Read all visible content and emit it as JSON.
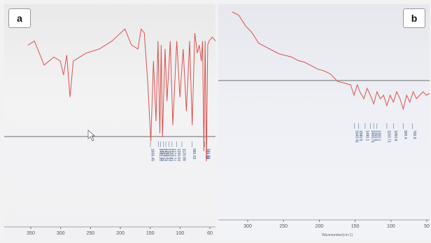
{
  "chart_data": [
    {
      "type": "line",
      "panel_label": "a",
      "xlabel": "",
      "ylabel": "",
      "xlim": [
        3500,
        600
      ],
      "x_ticks": [
        "350",
        "300",
        "250",
        "200",
        "150",
        "100",
        "60"
      ],
      "series_color": "#d9534f",
      "grid": false,
      "series": [
        {
          "name": "",
          "x": [
            3500,
            3400,
            3250,
            3100,
            3000,
            2950,
            2900,
            2850,
            2800,
            2600,
            2400,
            2200,
            2000,
            1900,
            1800,
            1750,
            1700,
            1650,
            1600,
            1560,
            1520,
            1490,
            1460,
            1440,
            1420,
            1380,
            1350,
            1300,
            1260,
            1200,
            1150,
            1100,
            1050,
            1000,
            960,
            920,
            880,
            850,
            820,
            800,
            780,
            760,
            741,
            720,
            700,
            650,
            600
          ],
          "y": [
            88,
            90,
            78,
            82,
            80,
            73,
            83,
            62,
            80,
            84,
            86,
            90,
            96,
            88,
            86,
            96,
            94,
            70,
            40,
            80,
            50,
            90,
            44,
            88,
            42,
            86,
            60,
            90,
            48,
            90,
            62,
            86,
            55,
            90,
            48,
            94,
            84,
            88,
            80,
            90,
            35,
            90,
            30,
            88,
            90,
            92,
            90
          ]
        }
      ],
      "peak_labels": [
        {
          "x": 1606,
          "text": "1606.45"
        },
        {
          "x": 1481,
          "text": "1481.20"
        },
        {
          "x": 1452,
          "text": "1452.15"
        },
        {
          "x": 1408,
          "text": "1408.74"
        },
        {
          "x": 1368,
          "text": "1368.37"
        },
        {
          "x": 1320,
          "text": "1320.83"
        },
        {
          "x": 1272,
          "text": "1272.77"
        },
        {
          "x": 1200,
          "text": "1200.04"
        },
        {
          "x": 1120,
          "text": "1120.99"
        },
        {
          "x": 960,
          "text": "960.03"
        },
        {
          "x": 767,
          "text": "767.98"
        },
        {
          "x": 741,
          "text": "741.89"
        }
      ]
    },
    {
      "type": "line",
      "panel_label": "b",
      "xlabel": "Wavenumber(cm-1)",
      "ylabel": "",
      "xlim": [
        3500,
        500
      ],
      "x_ticks": [
        "300",
        "250",
        "200",
        "150",
        "100",
        "50"
      ],
      "series_color": "#d9534f",
      "grid": false,
      "series": [
        {
          "name": "",
          "x": [
            3500,
            3400,
            3300,
            3200,
            3100,
            3000,
            2900,
            2800,
            2700,
            2600,
            2500,
            2400,
            2300,
            2200,
            2100,
            2000,
            1900,
            1800,
            1700,
            1650,
            1600,
            1560,
            1500,
            1450,
            1400,
            1350,
            1300,
            1250,
            1200,
            1150,
            1100,
            1050,
            1000,
            950,
            900,
            850,
            800,
            750,
            700,
            650,
            600,
            550,
            500
          ],
          "y": [
            98,
            96,
            90,
            86,
            80,
            78,
            76,
            74,
            73,
            72,
            70,
            69,
            67,
            65,
            64,
            62,
            58,
            57,
            56,
            50,
            56,
            52,
            48,
            54,
            50,
            45,
            52,
            48,
            50,
            44,
            50,
            46,
            52,
            48,
            42,
            50,
            46,
            52,
            48,
            50,
            52,
            50,
            51
          ]
        }
      ],
      "peak_labels": [
        {
          "x": 1640,
          "text": "1640.41"
        },
        {
          "x": 1580,
          "text": "1580.5"
        },
        {
          "x": 1480,
          "text": "1480.1"
        },
        {
          "x": 1400,
          "text": "1400.71"
        },
        {
          "x": 1350,
          "text": "1350.6"
        },
        {
          "x": 1300,
          "text": "1300.1"
        },
        {
          "x": 1150,
          "text": "1150.71"
        },
        {
          "x": 1050,
          "text": "1050.8"
        },
        {
          "x": 900,
          "text": "900.4"
        },
        {
          "x": 760,
          "text": "760.5"
        }
      ]
    }
  ]
}
